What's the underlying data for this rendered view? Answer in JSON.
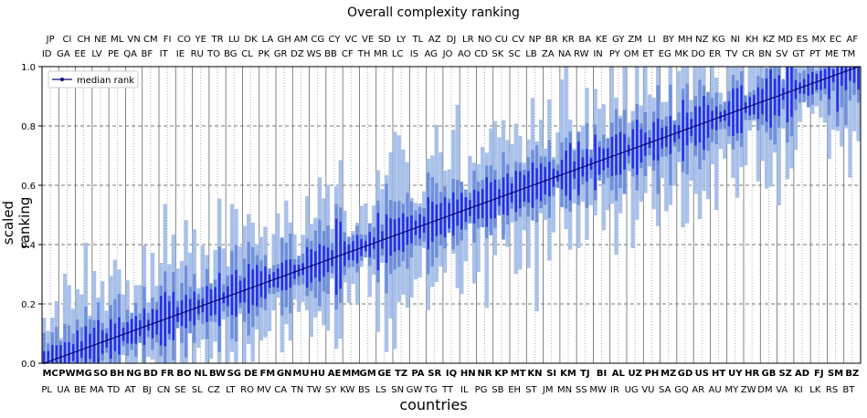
{
  "chart_data": {
    "type": "bar",
    "title": "Overall complexity ranking",
    "xlabel": "countries",
    "ylabel": "scaled ranking",
    "ylim": [
      0,
      1
    ],
    "yticks": [
      "0.0",
      "0.2",
      "0.4",
      "0.6",
      "0.8",
      "1.0"
    ],
    "grid": "dashed horizontal + dotted vertical",
    "legend": {
      "placement": "top-left",
      "entries": [
        "median rank"
      ]
    },
    "top_row1": [
      "JP",
      "CI",
      "CH",
      "NE",
      "ML",
      "VN",
      "CM",
      "FI",
      "CO",
      "YE",
      "TR",
      "LU",
      "DK",
      "LA",
      "GH",
      "AM",
      "CG",
      "CY",
      "VC",
      "VE",
      "SD",
      "LY",
      "TL",
      "AZ",
      "DJ",
      "LR",
      "NO",
      "CU",
      "CV",
      "NP",
      "BR",
      "KR",
      "BA",
      "KE",
      "GY",
      "ZM",
      "LI",
      "BY",
      "MH",
      "NZ",
      "KG",
      "NI",
      "KH",
      "KZ",
      "MD",
      "ES",
      "MX",
      "EC",
      "AF"
    ],
    "top_row2": [
      "ID",
      "GA",
      "EE",
      "LV",
      "PE",
      "QA",
      "BF",
      "IT",
      "IE",
      "RU",
      "TO",
      "BG",
      "CL",
      "PK",
      "GR",
      "DZ",
      "WS",
      "BB",
      "CF",
      "TH",
      "MR",
      "LC",
      "IS",
      "AG",
      "JO",
      "AO",
      "CD",
      "SK",
      "SC",
      "LB",
      "ZA",
      "NA",
      "RW",
      "IN",
      "PY",
      "OM",
      "ET",
      "EG",
      "MK",
      "DO",
      "ER",
      "TV",
      "CR",
      "BN",
      "SV",
      "GT",
      "PT",
      "ME",
      "TM"
    ],
    "bottom_row1": [
      "MC",
      "PW",
      "MG",
      "SO",
      "BH",
      "NG",
      "BD",
      "FR",
      "BO",
      "NL",
      "BW",
      "SG",
      "DE",
      "FM",
      "GN",
      "MU",
      "HU",
      "AE",
      "MM",
      "GM",
      "GE",
      "TZ",
      "PA",
      "SR",
      "IQ",
      "HN",
      "NR",
      "KP",
      "MT",
      "KN",
      "SI",
      "KM",
      "TJ",
      "BI",
      "AL",
      "UZ",
      "PH",
      "MZ",
      "GD",
      "US",
      "HT",
      "UY",
      "HR",
      "GB",
      "SZ",
      "AD",
      "FJ",
      "SM",
      "BZ"
    ],
    "bottom_row2": [
      "PL",
      "UA",
      "BE",
      "MA",
      "TD",
      "AT",
      "BJ",
      "CN",
      "SE",
      "SL",
      "CZ",
      "LT",
      "RO",
      "MV",
      "CA",
      "TN",
      "TW",
      "SY",
      "KW",
      "BS",
      "LS",
      "SN",
      "GW",
      "TG",
      "TT",
      "IL",
      "PG",
      "SB",
      "EH",
      "ST",
      "JM",
      "MN",
      "SS",
      "MW",
      "IR",
      "UG",
      "VU",
      "SA",
      "GQ",
      "AR",
      "AU",
      "MY",
      "ZW",
      "DM",
      "VA",
      "KI",
      "LK",
      "RS",
      "BT"
    ],
    "n_countries": 196,
    "series": [
      {
        "name": "median rank",
        "role": "line",
        "values": [
          0.0,
          1.0
        ]
      }
    ],
    "band_colors": {
      "outer": "#a9c1ea",
      "mid": "#6f8fdc",
      "inner": "#2530e8",
      "median": "#0a0a7c"
    }
  }
}
